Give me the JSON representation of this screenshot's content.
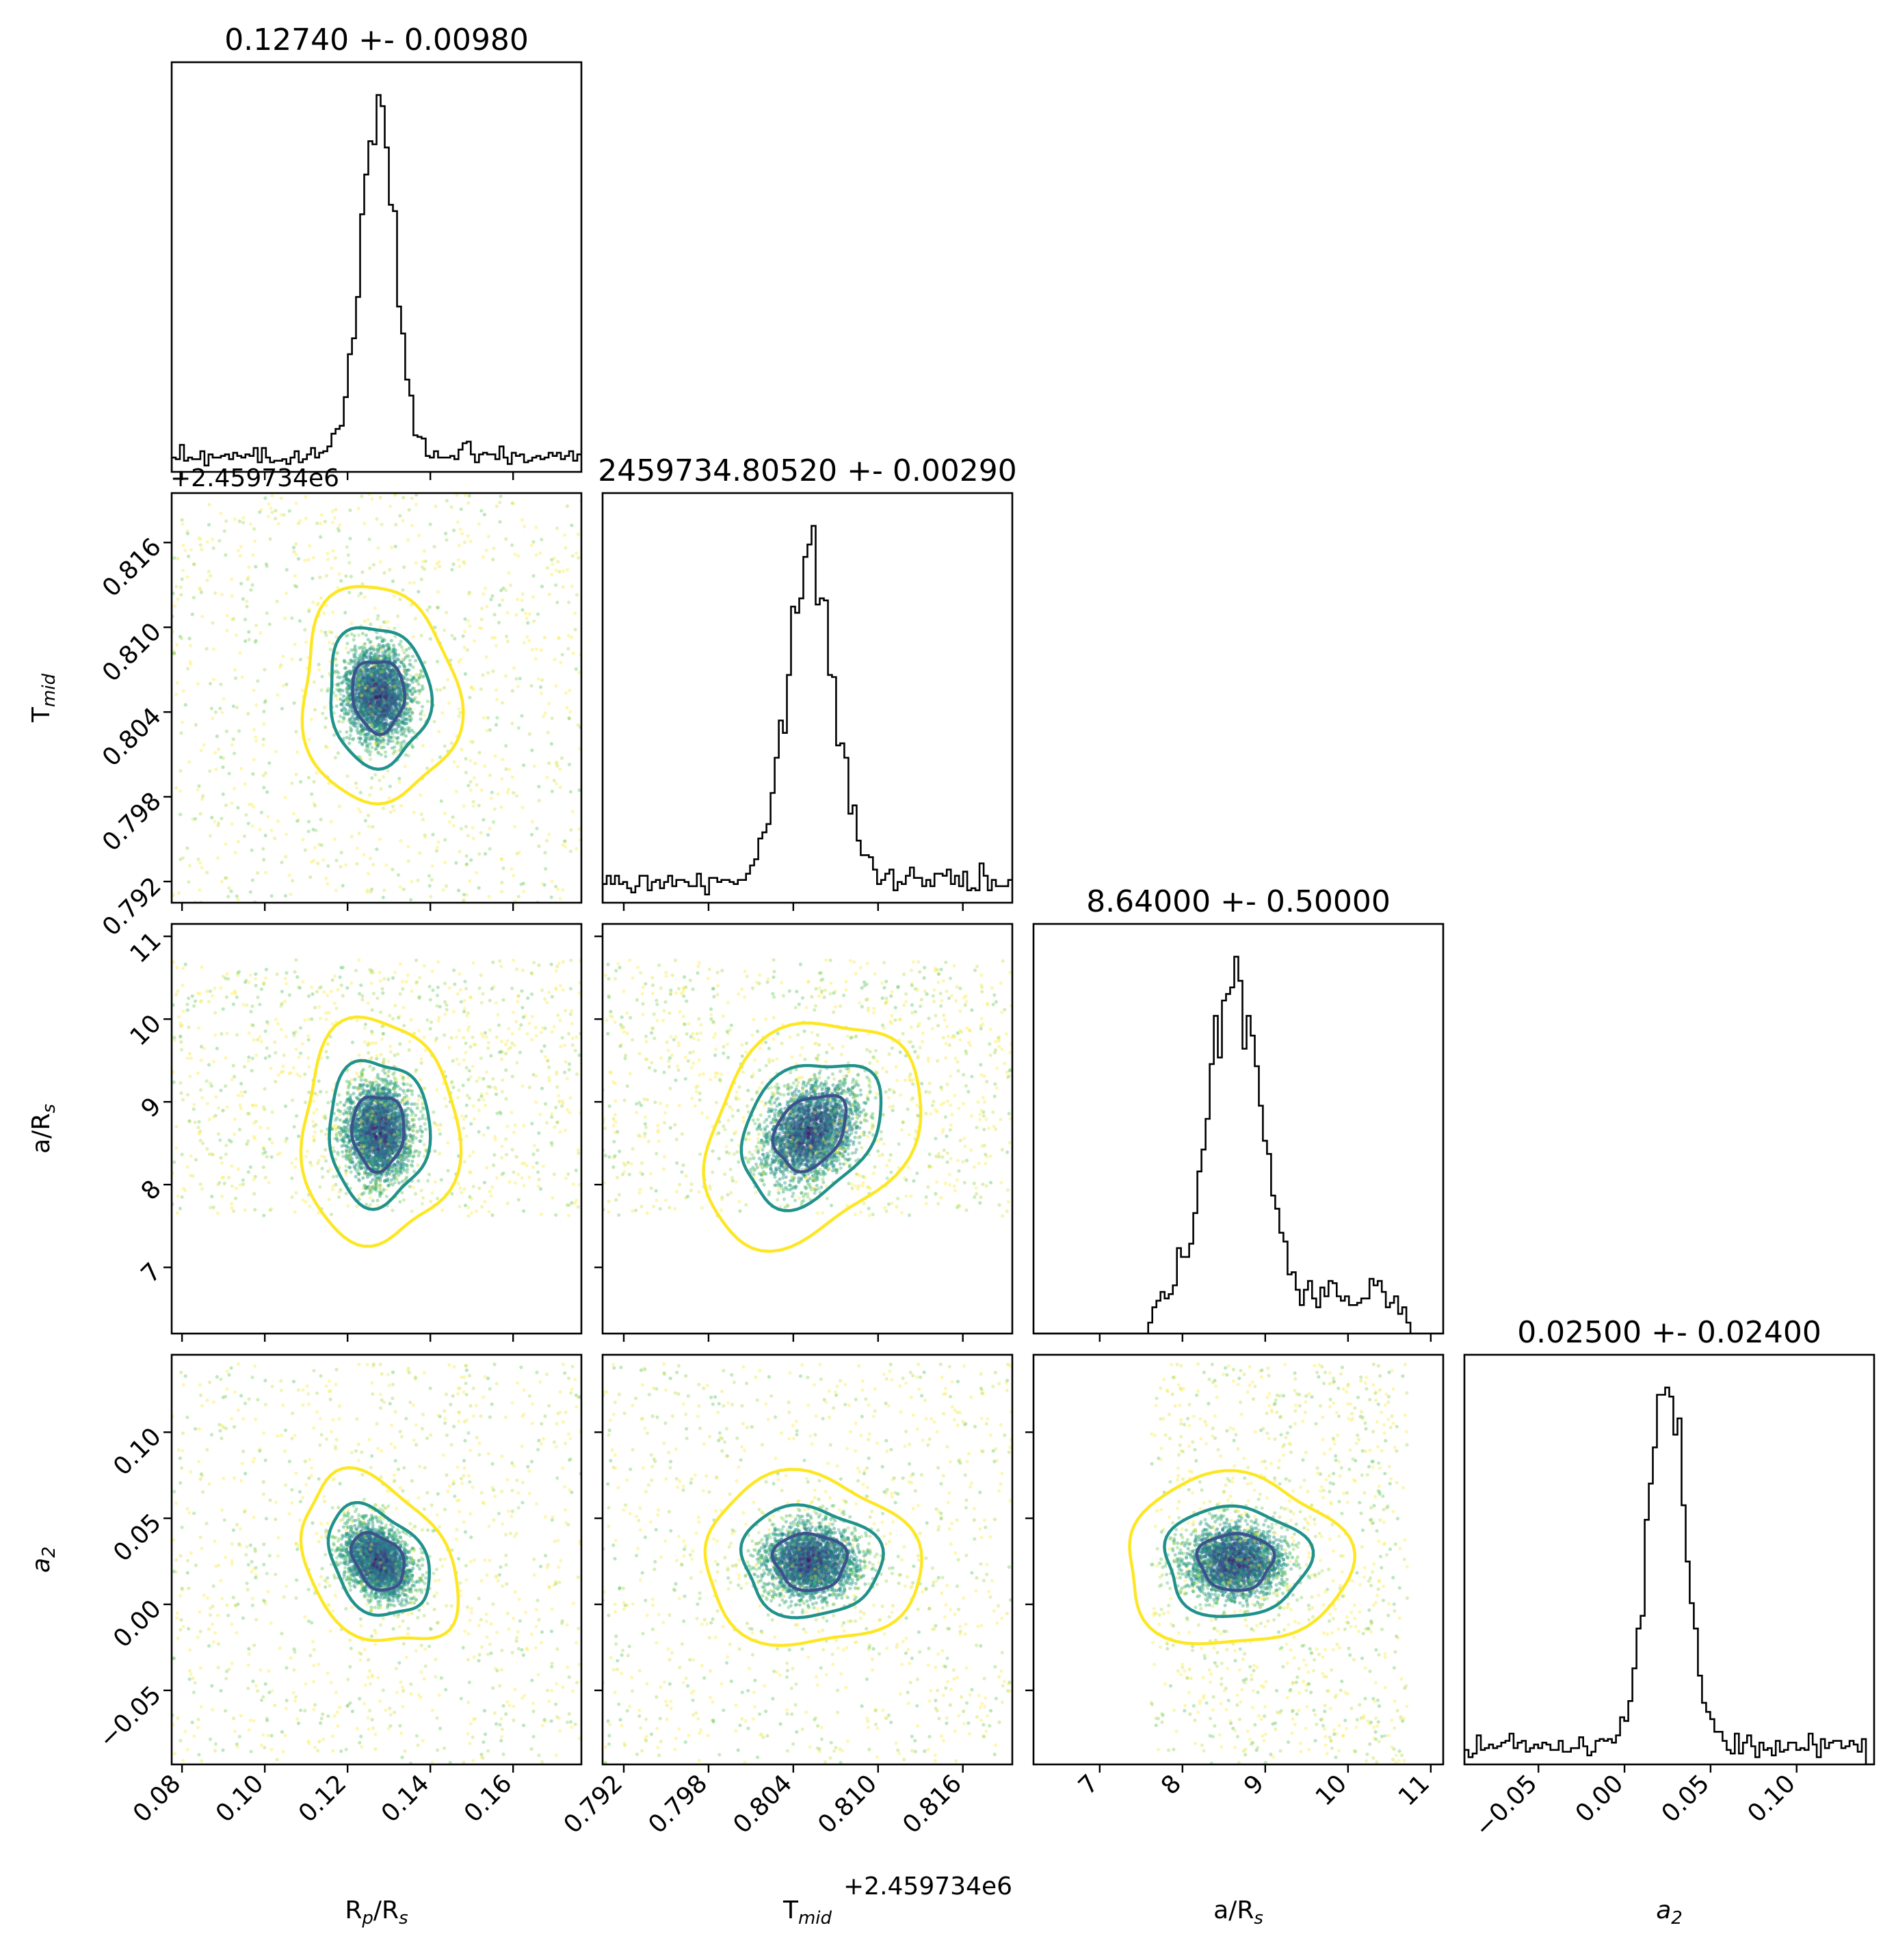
{
  "chart_data": {
    "type": "corner",
    "parameters": [
      "R_p/R_s",
      "T_mid",
      "a/R_s",
      "a_2"
    ],
    "axis_labels": {
      "R_p/R_s": {
        "main": "R",
        "sub": "p",
        "rest": "/R",
        "sub2": "s"
      },
      "T_mid": {
        "main": "T",
        "sub": "mid",
        "rest": "",
        "sub2": ""
      },
      "a/R_s": {
        "main": "a/R",
        "sub": "s",
        "rest": "",
        "sub2": ""
      },
      "a_2": {
        "main": "a",
        "sub": "2",
        "rest": "",
        "sub2": "",
        "italic": true
      }
    },
    "titles": [
      "0.12740 +- 0.00980",
      "2459734.80520 +- 0.00290",
      "8.64000 +- 0.50000",
      "0.02500 +- 0.02400"
    ],
    "offset_text": "+2.459734e6",
    "ranges": [
      [
        0.0775,
        0.1765
      ],
      [
        0.7905,
        0.8195
      ],
      [
        6.2,
        11.15
      ],
      [
        -0.093,
        0.145
      ]
    ],
    "ticks": [
      [
        "0.08",
        "0.10",
        "0.12",
        "0.14",
        "0.16"
      ],
      [
        "0.792",
        "0.798",
        "0.804",
        "0.810",
        "0.816"
      ],
      [
        "7",
        "8",
        "9",
        "10",
        "11"
      ],
      [
        "−0.05",
        "0.00",
        "0.05",
        "0.10"
      ]
    ],
    "tick_values": [
      [
        0.08,
        0.1,
        0.12,
        0.14,
        0.16
      ],
      [
        0.792,
        0.798,
        0.804,
        0.81,
        0.816
      ],
      [
        7,
        8,
        9,
        10,
        11
      ],
      [
        -0.05,
        0.0,
        0.05,
        0.1
      ]
    ],
    "distributions": [
      {
        "mean": 0.1274,
        "sigma": 0.0098,
        "core_sigma": 0.0042,
        "sample_range": [
          0.0775,
          0.1765
        ]
      },
      {
        "mean": 0.8052,
        "sigma": 0.0029,
        "core_sigma": 0.0017,
        "sample_range": [
          0.7905,
          0.8195
        ]
      },
      {
        "mean": 8.64,
        "sigma": 0.5,
        "core_sigma": 0.3,
        "sample_range": [
          7.62,
          10.72
        ]
      },
      {
        "mean": 0.025,
        "sigma": 0.024,
        "core_sigma": 0.011,
        "sample_range": [
          -0.093,
          0.14
        ]
      }
    ],
    "histogram_bins": 100,
    "contour_levels": [
      "1-sigma",
      "2-sigma",
      "3-sigma"
    ],
    "colors": {
      "level1": "#3b528b",
      "level2": "#21918c",
      "level3": "#fde725",
      "hist": "#000000",
      "cmap": "viridis"
    },
    "grid": false
  }
}
